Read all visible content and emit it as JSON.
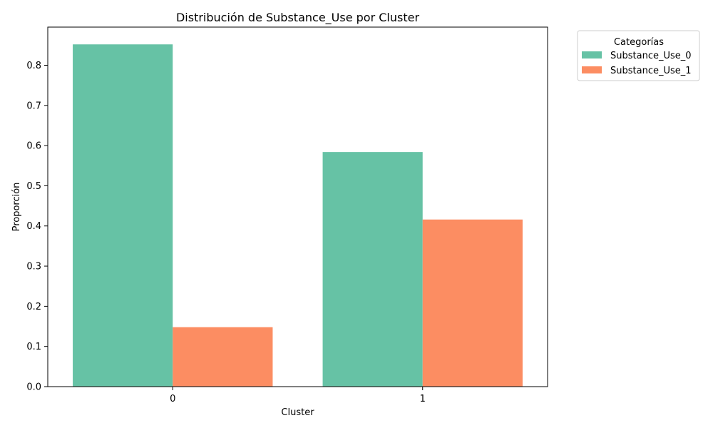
{
  "chart_data": {
    "type": "bar",
    "title": "Distribución de Substance_Use por Cluster",
    "xlabel": "Cluster",
    "ylabel": "Proporción",
    "categories": [
      "0",
      "1"
    ],
    "series": [
      {
        "name": "Substance_Use_0",
        "values": [
          0.852,
          0.584
        ],
        "color": "#66c2a5"
      },
      {
        "name": "Substance_Use_1",
        "values": [
          0.148,
          0.416
        ],
        "color": "#fc8d62"
      }
    ],
    "yticks": [
      "0.0",
      "0.1",
      "0.2",
      "0.3",
      "0.4",
      "0.5",
      "0.6",
      "0.7",
      "0.8"
    ],
    "ylim": [
      0,
      0.895
    ],
    "grid": false,
    "legend": {
      "title": "Categorías",
      "placement": "outside-top-right"
    }
  }
}
